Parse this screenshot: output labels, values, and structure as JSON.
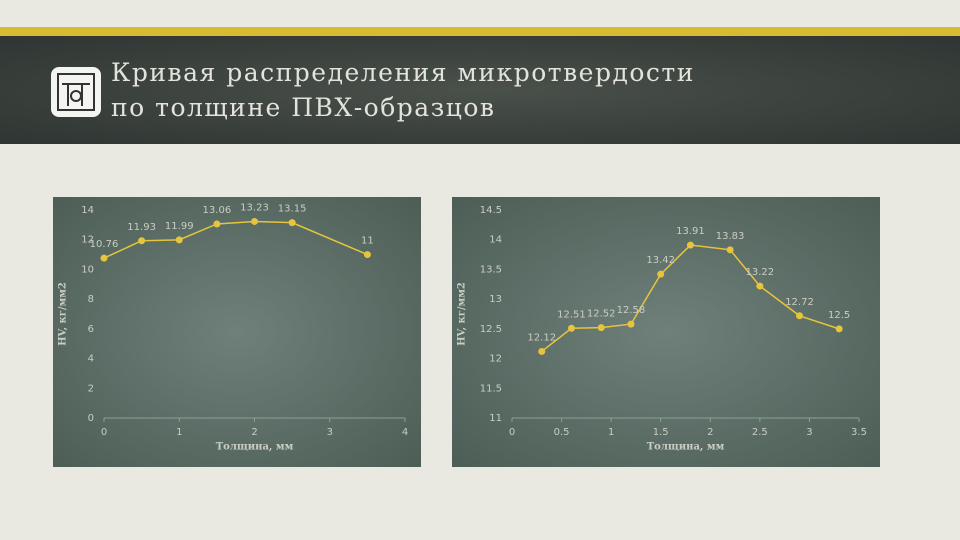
{
  "title": "Кривая распределения микротвердости по толщине ПВХ-образцов",
  "chart_data": [
    {
      "type": "line",
      "color": "#e6c53c",
      "grid": false,
      "x": [
        0,
        0.5,
        1,
        1.5,
        2,
        2.5,
        3.5
      ],
      "values": [
        10.76,
        11.93,
        11.99,
        13.06,
        13.23,
        13.15,
        11
      ],
      "xlim": [
        0,
        4
      ],
      "xticks": [
        0,
        1,
        2,
        3,
        4
      ],
      "ylim": [
        0,
        14
      ],
      "yticks": [
        0,
        2,
        4,
        6,
        8,
        10,
        12,
        14
      ],
      "xlabel": "Толщина, мм",
      "ylabel": "HV, кг/мм2"
    },
    {
      "type": "line",
      "color": "#e6c53c",
      "grid": false,
      "x": [
        0.3,
        0.6,
        0.9,
        1.2,
        1.5,
        1.8,
        2.2,
        2.5,
        2.9,
        3.3
      ],
      "values": [
        12.12,
        12.51,
        12.52,
        12.58,
        13.42,
        13.91,
        13.83,
        13.22,
        12.72,
        12.5
      ],
      "xlim": [
        0,
        3.5
      ],
      "xticks": [
        0,
        0.5,
        1,
        1.5,
        2,
        2.5,
        3,
        3.5
      ],
      "ylim": [
        11,
        14.5
      ],
      "yticks": [
        11,
        11.5,
        12,
        12.5,
        13,
        13.5,
        14,
        14.5
      ],
      "xlabel": "Толщина, мм",
      "ylabel": "HV, кг/мм2"
    }
  ]
}
